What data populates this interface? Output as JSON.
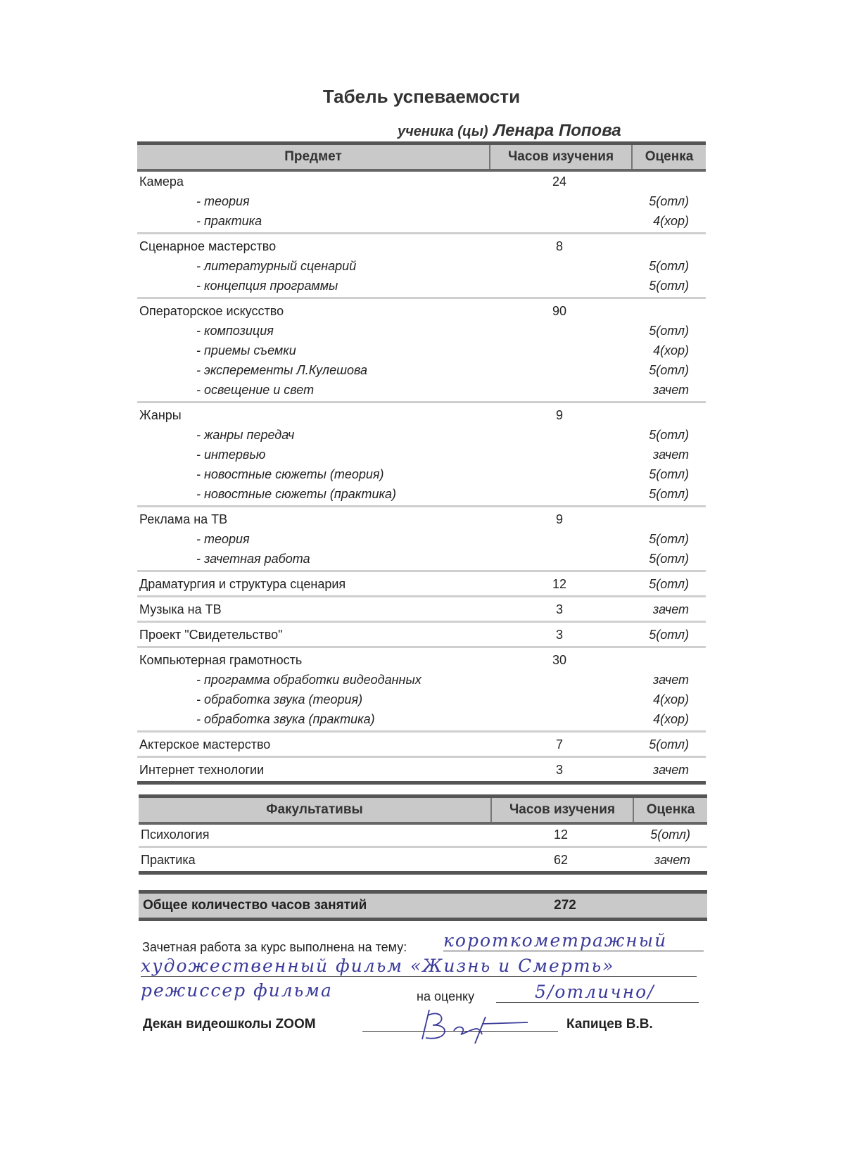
{
  "title": "Табель успеваемости",
  "student_label": "ученика (цы)",
  "student_name": "Ленара Попова",
  "main_table": {
    "headers": [
      "Предмет",
      "Часов изучения",
      "Оценка"
    ],
    "groups": [
      {
        "subject": "Камера",
        "hours": "24",
        "grade": "",
        "items": [
          {
            "name": "- теория",
            "grade": "5(отл)"
          },
          {
            "name": "- практика",
            "grade": "4(хор)"
          }
        ]
      },
      {
        "subject": "Сценарное мастерство",
        "hours": "8",
        "grade": "",
        "items": [
          {
            "name": "- литературный сценарий",
            "grade": "5(отл)"
          },
          {
            "name": "- концепция программы",
            "grade": "5(отл)"
          }
        ]
      },
      {
        "subject": "Операторское искусство",
        "hours": "90",
        "grade": "",
        "items": [
          {
            "name": "- композиция",
            "grade": "5(отл)"
          },
          {
            "name": "- приемы съемки",
            "grade": "4(хор)"
          },
          {
            "name": "- эксперементы Л.Кулешова",
            "grade": "5(отл)"
          },
          {
            "name": "- освещение и свет",
            "grade": "зачет"
          }
        ]
      },
      {
        "subject": "Жанры",
        "hours": "9",
        "grade": "",
        "items": [
          {
            "name": "- жанры передач",
            "grade": "5(отл)"
          },
          {
            "name": "- интервью",
            "grade": "зачет"
          },
          {
            "name": "- новостные сюжеты (теория)",
            "grade": "5(отл)"
          },
          {
            "name": "- новостные сюжеты (практика)",
            "grade": "5(отл)"
          }
        ]
      },
      {
        "subject": "Реклама на ТВ",
        "hours": "9",
        "grade": "",
        "items": [
          {
            "name": "- теория",
            "grade": "5(отл)"
          },
          {
            "name": "- зачетная работа",
            "grade": "5(отл)"
          }
        ]
      },
      {
        "subject": "Драматургия и структура сценария",
        "hours": "12",
        "grade": "5(отл)",
        "items": []
      },
      {
        "subject": "Музыка на ТВ",
        "hours": "3",
        "grade": "зачет",
        "items": []
      },
      {
        "subject": "Проект \"Свидетельство\"",
        "hours": "3",
        "grade": "5(отл)",
        "items": []
      },
      {
        "subject": "Компьютерная грамотность",
        "hours": "30",
        "grade": "",
        "items": [
          {
            "name": "- программа обработки видеоданных",
            "grade": "зачет"
          },
          {
            "name": "- обработка звука (теория)",
            "grade": "4(хор)"
          },
          {
            "name": "- обработка звука (практика)",
            "grade": "4(хор)"
          }
        ]
      },
      {
        "subject": "Актерское мастерство",
        "hours": "7",
        "grade": "5(отл)",
        "items": []
      },
      {
        "subject": "Интернет технологии",
        "hours": "3",
        "grade": "зачет",
        "items": []
      }
    ]
  },
  "electives_table": {
    "headers": [
      "Факультативы",
      "Часов изучения",
      "Оценка"
    ],
    "groups": [
      {
        "subject": "Психология",
        "hours": "12",
        "grade": "5(отл)",
        "items": []
      },
      {
        "subject": "Практика",
        "hours": "62",
        "grade": "зачет",
        "items": []
      }
    ]
  },
  "total": {
    "label": "Общее количество часов занятий",
    "hours": "272"
  },
  "thesis": {
    "label": "Зачетная работа за курс выполнена на тему:",
    "handwritten_line1": "короткометражный",
    "handwritten_line2": "художественный фильм «Жизнь и Смерть»",
    "handwritten_line3": "режиссер фильма",
    "grade_label": "на оценку",
    "handwritten_grade": "5/отлично/"
  },
  "signature": {
    "dean_label": "Декан видеошколы ZOOM",
    "dean_name": "Капицев В.В."
  },
  "colors": {
    "header_fill": "#c9c9c9",
    "rule": "#555555",
    "ink": "#3a3a9a"
  }
}
